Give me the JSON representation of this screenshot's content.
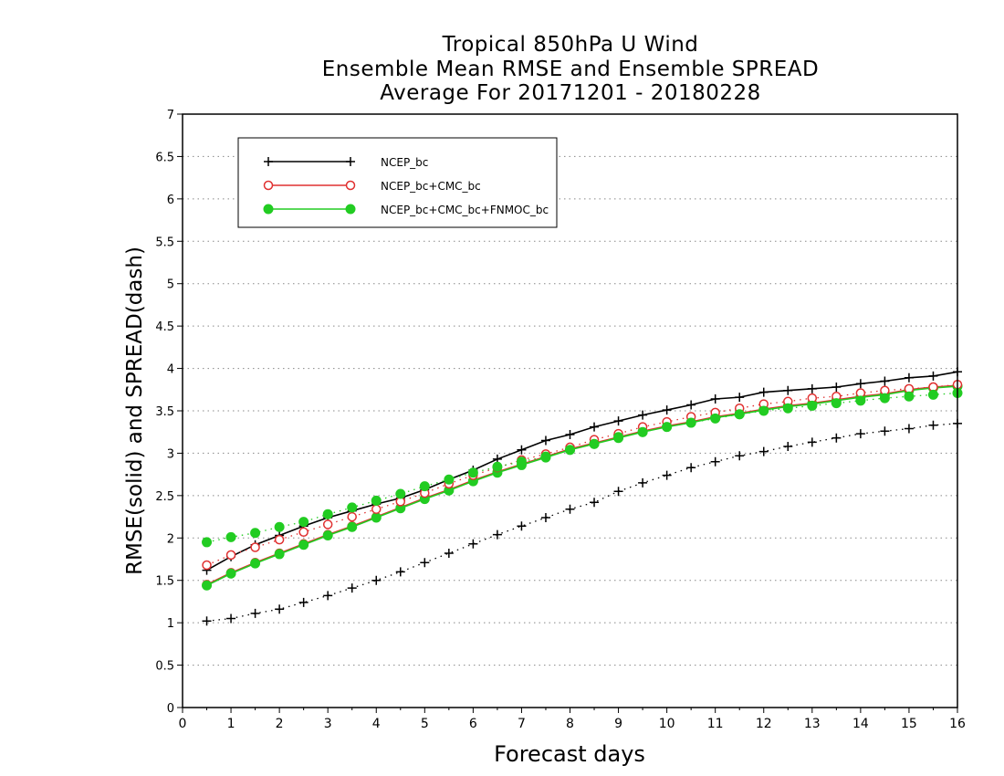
{
  "chart_data": {
    "type": "line",
    "title": [
      "Tropical 850hPa U Wind",
      "Ensemble Mean RMSE and Ensemble SPREAD",
      "Average For 20171201 - 20180228"
    ],
    "xlabel": "Forecast days",
    "ylabel": "RMSE(solid) and SPREAD(dash)",
    "xlim": [
      0,
      16
    ],
    "ylim": [
      0,
      7
    ],
    "xticks": [
      "0",
      "1",
      "2",
      "3",
      "4",
      "5",
      "6",
      "7",
      "8",
      "9",
      "10",
      "11",
      "12",
      "13",
      "14",
      "15",
      "16"
    ],
    "yticks": [
      "0",
      "0.5",
      "1",
      "1.5",
      "2",
      "2.5",
      "3",
      "3.5",
      "4",
      "4.5",
      "5",
      "5.5",
      "6",
      "6.5",
      "7"
    ],
    "grid": "horizontal dotted",
    "legend_position": "top-left",
    "x": [
      0.5,
      1,
      1.5,
      2,
      2.5,
      3,
      3.5,
      4,
      4.5,
      5,
      5.5,
      6,
      6.5,
      7,
      7.5,
      8,
      8.5,
      9,
      9.5,
      10,
      10.5,
      11,
      11.5,
      12,
      12.5,
      13,
      13.5,
      14,
      14.5,
      15,
      15.5,
      16
    ],
    "series": [
      {
        "name": "NCEP_bc",
        "metric": "RMSE",
        "style": "solid",
        "marker": "plus",
        "color": "#000000",
        "values": [
          1.62,
          1.78,
          1.92,
          2.03,
          2.14,
          2.24,
          2.32,
          2.4,
          2.47,
          2.57,
          2.69,
          2.8,
          2.93,
          3.04,
          3.15,
          3.22,
          3.31,
          3.38,
          3.45,
          3.51,
          3.57,
          3.64,
          3.66,
          3.72,
          3.74,
          3.76,
          3.78,
          3.82,
          3.85,
          3.89,
          3.91,
          3.96
        ]
      },
      {
        "name": "NCEP_bc+CMC_bc",
        "metric": "RMSE",
        "style": "solid",
        "marker": "open-circle",
        "color": "#e03030",
        "values": [
          1.45,
          1.59,
          1.71,
          1.82,
          1.93,
          2.04,
          2.14,
          2.25,
          2.36,
          2.47,
          2.57,
          2.68,
          2.78,
          2.87,
          2.96,
          3.05,
          3.12,
          3.19,
          3.26,
          3.32,
          3.37,
          3.43,
          3.47,
          3.52,
          3.56,
          3.59,
          3.63,
          3.67,
          3.7,
          3.75,
          3.78,
          3.8
        ]
      },
      {
        "name": "NCEP_bc+CMC_bc+FNMOC_bc",
        "metric": "RMSE",
        "style": "solid",
        "marker": "filled-circle",
        "color": "#22cc22",
        "values": [
          1.44,
          1.58,
          1.7,
          1.81,
          1.92,
          2.03,
          2.13,
          2.24,
          2.35,
          2.46,
          2.56,
          2.67,
          2.77,
          2.86,
          2.95,
          3.04,
          3.11,
          3.18,
          3.25,
          3.31,
          3.36,
          3.42,
          3.46,
          3.51,
          3.55,
          3.58,
          3.62,
          3.66,
          3.69,
          3.74,
          3.77,
          3.79
        ]
      },
      {
        "name": "NCEP_bc",
        "metric": "SPREAD",
        "style": "dash",
        "marker": "plus",
        "color": "#000000",
        "values": [
          1.02,
          1.05,
          1.11,
          1.16,
          1.24,
          1.32,
          1.41,
          1.5,
          1.6,
          1.71,
          1.82,
          1.93,
          2.04,
          2.14,
          2.24,
          2.34,
          2.42,
          2.55,
          2.65,
          2.74,
          2.83,
          2.9,
          2.97,
          3.02,
          3.08,
          3.13,
          3.18,
          3.23,
          3.26,
          3.29,
          3.33,
          3.35
        ]
      },
      {
        "name": "NCEP_bc+CMC_bc",
        "metric": "SPREAD",
        "style": "dash",
        "marker": "open-circle",
        "color": "#e03030",
        "values": [
          1.68,
          1.8,
          1.89,
          1.98,
          2.07,
          2.16,
          2.25,
          2.34,
          2.43,
          2.53,
          2.64,
          2.74,
          2.83,
          2.92,
          2.99,
          3.07,
          3.16,
          3.23,
          3.31,
          3.37,
          3.43,
          3.48,
          3.53,
          3.58,
          3.61,
          3.65,
          3.67,
          3.71,
          3.74,
          3.76,
          3.78,
          3.81
        ]
      },
      {
        "name": "NCEP_bc+CMC_bc+FNMOC_bc",
        "metric": "SPREAD",
        "style": "dash",
        "marker": "filled-circle",
        "color": "#22cc22",
        "values": [
          1.95,
          2.01,
          2.06,
          2.13,
          2.19,
          2.28,
          2.36,
          2.44,
          2.52,
          2.61,
          2.69,
          2.77,
          2.84,
          2.9,
          2.96,
          3.04,
          3.11,
          3.19,
          3.25,
          3.31,
          3.36,
          3.41,
          3.46,
          3.5,
          3.53,
          3.56,
          3.59,
          3.62,
          3.65,
          3.67,
          3.69,
          3.71
        ]
      }
    ],
    "legend": [
      {
        "label": "NCEP_bc",
        "color": "#000000",
        "marker": "plus"
      },
      {
        "label": "NCEP_bc+CMC_bc",
        "color": "#e03030",
        "marker": "open-circle"
      },
      {
        "label": "NCEP_bc+CMC_bc+FNMOC_bc",
        "color": "#22cc22",
        "marker": "filled-circle"
      }
    ]
  }
}
